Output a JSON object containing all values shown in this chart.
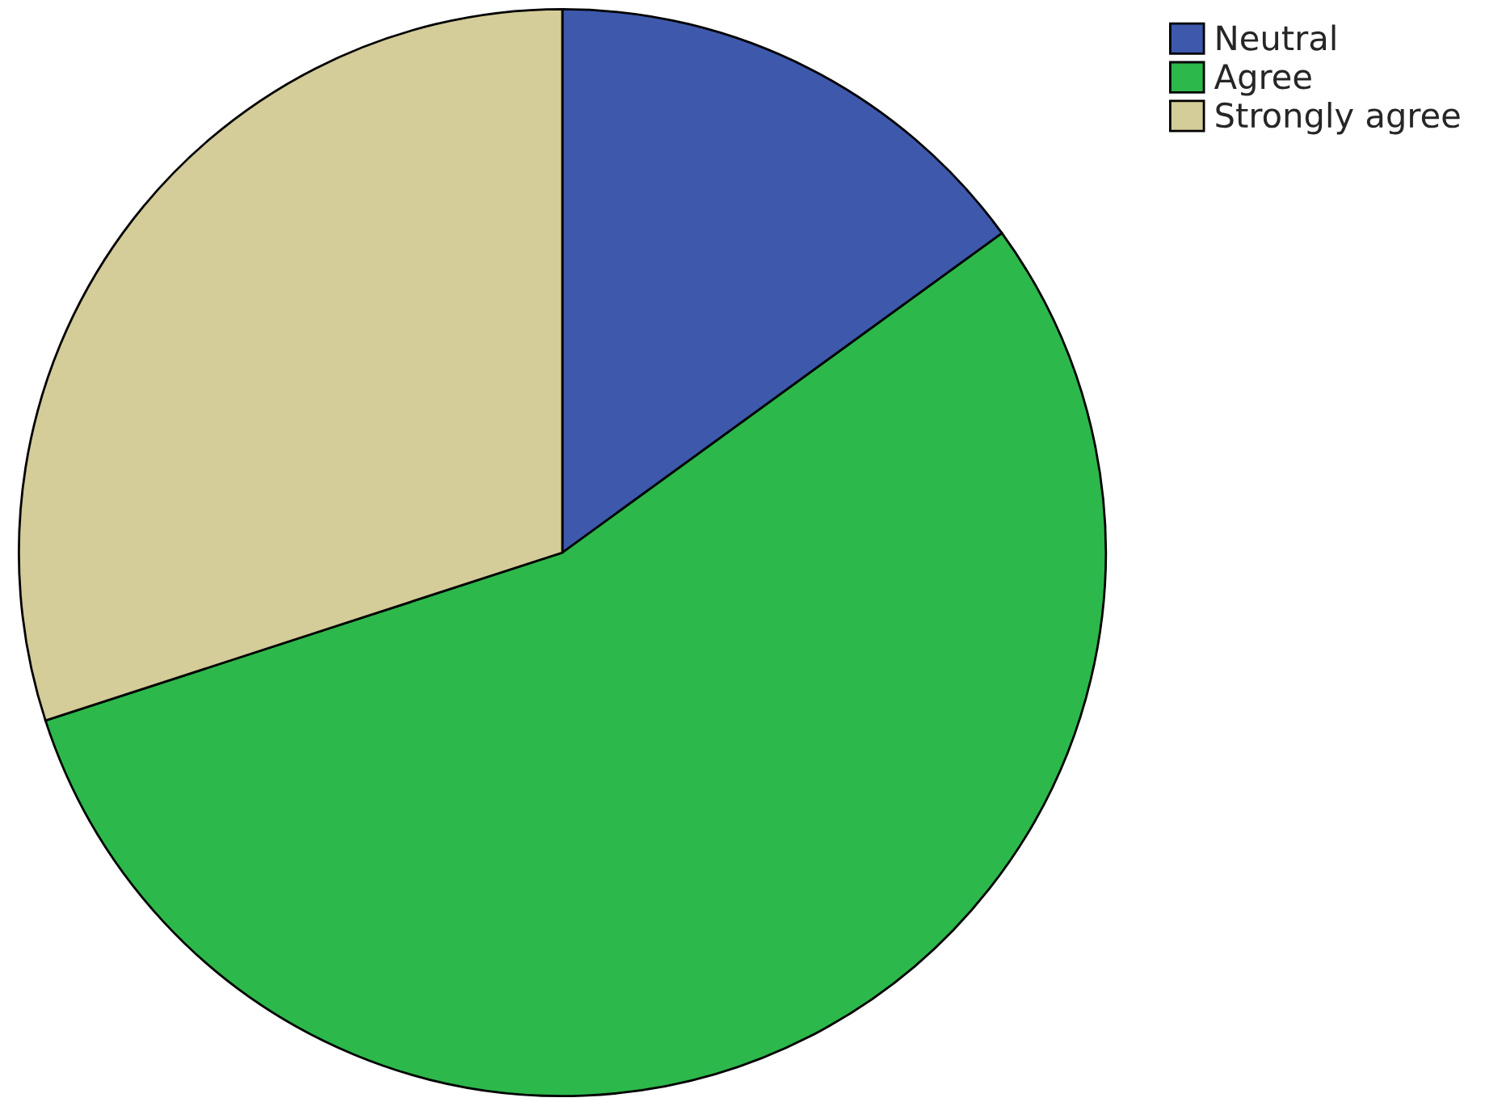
{
  "chart_data": {
    "type": "pie",
    "categories": [
      "Neutral",
      "Agree",
      "Strongly agree"
    ],
    "values": [
      15,
      55,
      30
    ],
    "colors": [
      "#3e58ac",
      "#2db84b",
      "#d4cc99"
    ],
    "legend": "top right"
  }
}
